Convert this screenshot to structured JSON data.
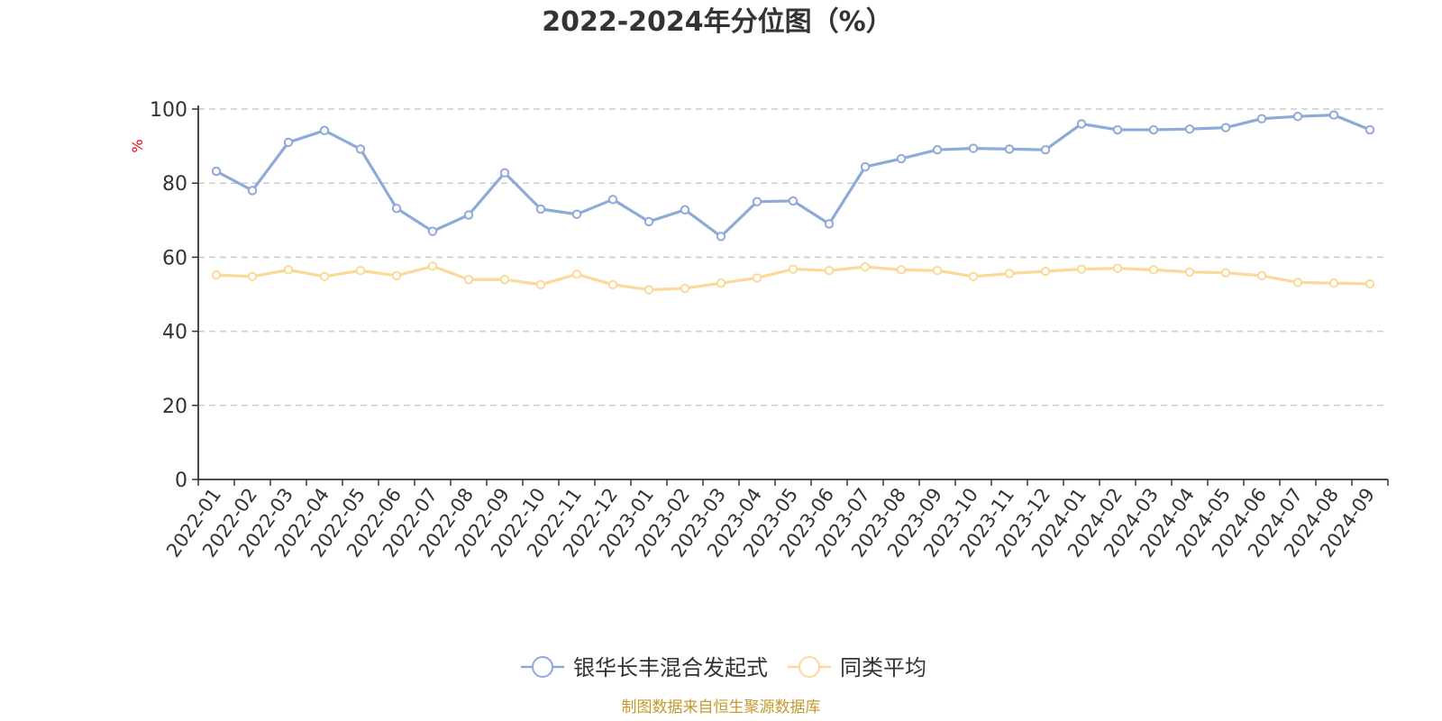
{
  "chart_data": {
    "type": "line",
    "title": "2022-2024年分位图（%）",
    "ylabel": "%",
    "ylim": [
      0,
      100
    ],
    "yticks": [
      0,
      20,
      40,
      60,
      80,
      100
    ],
    "grid": true,
    "legend_position": "bottom",
    "categories": [
      "2022-01",
      "2022-02",
      "2022-03",
      "2022-04",
      "2022-05",
      "2022-06",
      "2022-07",
      "2022-08",
      "2022-09",
      "2022-10",
      "2022-11",
      "2022-12",
      "2023-01",
      "2023-02",
      "2023-03",
      "2023-04",
      "2023-05",
      "2023-06",
      "2023-07",
      "2023-08",
      "2023-09",
      "2023-10",
      "2023-11",
      "2023-12",
      "2024-01",
      "2024-02",
      "2024-03",
      "2024-04",
      "2024-05",
      "2024-06",
      "2024-07",
      "2024-08",
      "2024-09"
    ],
    "series": [
      {
        "name": "银华长丰混合发起式",
        "color": "#8eaad8",
        "values": [
          83.2,
          78.0,
          91.0,
          94.2,
          89.2,
          73.2,
          67.0,
          71.4,
          82.8,
          73.0,
          71.6,
          75.6,
          69.6,
          72.8,
          65.6,
          75.0,
          75.2,
          69.0,
          84.4,
          86.6,
          89.0,
          89.4,
          89.2,
          89.0,
          96.0,
          94.4,
          94.4,
          94.6,
          95.0,
          97.4,
          98.0,
          98.4,
          94.4
        ]
      },
      {
        "name": "同类平均",
        "color": "#fcd899",
        "values": [
          55.2,
          54.8,
          56.6,
          54.8,
          56.4,
          55.0,
          57.6,
          54.0,
          54.0,
          52.6,
          55.4,
          52.6,
          51.2,
          51.6,
          53.0,
          54.4,
          56.8,
          56.4,
          57.4,
          56.6,
          56.4,
          54.8,
          55.6,
          56.2,
          56.8,
          57.0,
          56.6,
          56.0,
          55.8,
          55.0,
          53.2,
          53.0,
          52.8
        ]
      }
    ]
  },
  "footer": {
    "source": "制图数据来自恒生聚源数据库",
    "source_color": "#c49a2c"
  },
  "colors": {
    "axis": "#333333",
    "grid": "#cccccc",
    "unit": "#e60012"
  }
}
